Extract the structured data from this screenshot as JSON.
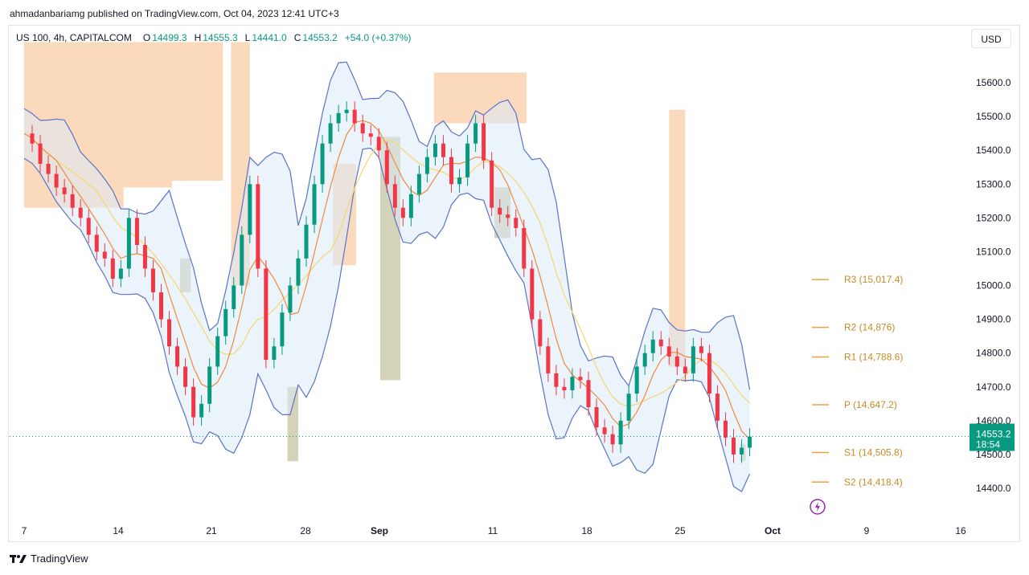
{
  "header": {
    "published": "ahmadanbariamg published on TradingView.com, Oct 04, 2023 12:41 UTC+3"
  },
  "legend": {
    "symbol": "US 100, 4h, CAPITALCOM",
    "o_label": "O",
    "o_value": "14499.3",
    "h_label": "H",
    "h_value": "14555.3",
    "l_label": "L",
    "l_value": "14441.0",
    "c_label": "C",
    "c_value": "14553.2",
    "change": "+54.0 (+0.37%)"
  },
  "currency_button": "USD",
  "footer": {
    "brand": "TradingView"
  },
  "colors": {
    "up": "#089981",
    "down": "#f23645",
    "bb": "#5b73c6",
    "ema_fast": "#f08a3c",
    "ema_slow": "#f5d76e",
    "pivot": "#e8a33d",
    "zone_supply": "#f8c9a0",
    "zone_demand": "#b8b58a"
  },
  "chart_data": {
    "type": "candlestick",
    "title": "",
    "price_axis": {
      "ticks": [
        "15600.0",
        "15500.0",
        "15400.0",
        "15300.0",
        "15200.0",
        "15100.0",
        "15000.0",
        "14900.0",
        "14800.0",
        "14700.0",
        "14600.0",
        "14500.0",
        "14400.0"
      ],
      "range": [
        14330,
        15720
      ]
    },
    "time_axis": {
      "ticks": [
        "7",
        "14",
        "21",
        "28",
        "Sep",
        "11",
        "18",
        "25",
        "Oct",
        "9",
        "16"
      ],
      "range_days": [
        0,
        42
      ]
    },
    "last_price": {
      "value": "14553.2",
      "countdown": "18:54"
    },
    "pivots": [
      {
        "label": "R3 (15,017.4)",
        "value": 15017.4
      },
      {
        "label": "R2 (14,876)",
        "value": 14876
      },
      {
        "label": "R1 (14,788.6)",
        "value": 14788.6
      },
      {
        "label": "P (14,647.2)",
        "value": 14647.2
      },
      {
        "label": "S1 (14,505.8)",
        "value": 14505.8
      },
      {
        "label": "S2 (14,418.4)",
        "value": 14418.4
      }
    ],
    "zones": [
      {
        "kind": "supply",
        "x0": 0.0,
        "x1": 7.4,
        "y0": 15230,
        "y1": 15720
      },
      {
        "kind": "supply",
        "x0": 7.4,
        "x1": 11.0,
        "y0": 15290,
        "y1": 15720
      },
      {
        "kind": "supply",
        "x0": 11.0,
        "x1": 14.8,
        "y0": 15310,
        "y1": 15720
      },
      {
        "kind": "supply",
        "x0": 15.4,
        "x1": 16.8,
        "y0": 15000,
        "y1": 15720
      },
      {
        "kind": "supply",
        "x0": 23.0,
        "x1": 24.7,
        "y0": 15060,
        "y1": 15360
      },
      {
        "kind": "supply",
        "x0": 30.5,
        "x1": 37.4,
        "y0": 15480,
        "y1": 15630
      },
      {
        "kind": "supply",
        "x0": 48.0,
        "x1": 49.2,
        "y0": 14760,
        "y1": 15520
      },
      {
        "kind": "demand",
        "x0": 11.6,
        "x1": 12.4,
        "y0": 14980,
        "y1": 15080
      },
      {
        "kind": "demand",
        "x0": 19.6,
        "x1": 20.4,
        "y0": 14480,
        "y1": 14700
      },
      {
        "kind": "demand",
        "x0": 26.5,
        "x1": 28.0,
        "y0": 14720,
        "y1": 15440
      },
      {
        "kind": "demand",
        "x0": 35.0,
        "x1": 36.2,
        "y0": 15140,
        "y1": 15290
      },
      {
        "kind": "demand",
        "x0": 53.3,
        "x1": 53.7,
        "y0": 14480,
        "y1": 14530
      }
    ],
    "series": [
      {
        "name": "Close",
        "x": [
          0,
          0.6,
          1.2,
          1.8,
          2.4,
          3.0,
          3.6,
          4.2,
          4.8,
          5.4,
          6.0,
          6.6,
          7.2,
          7.8,
          8.4,
          9.0,
          9.6,
          10.2,
          10.8,
          11.4,
          12.0,
          12.6,
          13.2,
          13.8,
          14.4,
          15.0,
          15.6,
          16.2,
          16.8,
          17.4,
          18.0,
          18.6,
          19.2,
          19.8,
          20.4,
          21.0,
          21.6,
          22.2,
          22.8,
          23.4,
          24.0,
          24.6,
          25.2,
          25.8,
          26.4,
          27.0,
          27.6,
          28.2,
          28.8,
          29.4,
          30.0,
          30.6,
          31.2,
          31.8,
          32.4,
          33.0,
          33.6,
          34.2,
          34.8,
          35.4,
          36.0,
          36.6,
          37.2,
          37.8,
          38.4,
          39.0,
          39.6,
          40.2,
          40.8,
          41.4,
          42.0,
          42.6,
          43.2,
          43.8,
          44.4,
          45.0,
          45.6,
          46.2,
          46.8,
          47.4,
          48.0,
          48.6,
          49.2,
          49.8,
          50.4,
          51.0,
          51.6,
          52.2,
          52.8,
          53.4,
          54.0
        ],
        "values": [
          15450,
          15420,
          15360,
          15330,
          15290,
          15270,
          15230,
          15200,
          15150,
          15100,
          15080,
          15020,
          15050,
          15200,
          15120,
          15050,
          14980,
          14900,
          14820,
          14760,
          14700,
          14610,
          14650,
          14760,
          14850,
          14930,
          15000,
          15150,
          15300,
          15050,
          14780,
          14820,
          14920,
          15000,
          15080,
          15180,
          15300,
          15420,
          15480,
          15510,
          15520,
          15480,
          15450,
          15440,
          15400,
          15300,
          15230,
          15200,
          15270,
          15330,
          15380,
          15420,
          15380,
          15300,
          15320,
          15420,
          15480,
          15370,
          15230,
          15210,
          15200,
          15170,
          15050,
          14900,
          14820,
          14740,
          14700,
          14690,
          14730,
          14720,
          14640,
          14580,
          14560,
          14530,
          14600,
          14680,
          14760,
          14800,
          14840,
          14820,
          14790,
          14760,
          14740,
          14820,
          14800,
          14680,
          14600,
          14550,
          14500,
          14520,
          14553
        ]
      }
    ],
    "indicators": [
      "Bollinger Bands",
      "EMA fast",
      "EMA slow",
      "Pivot Points"
    ]
  }
}
